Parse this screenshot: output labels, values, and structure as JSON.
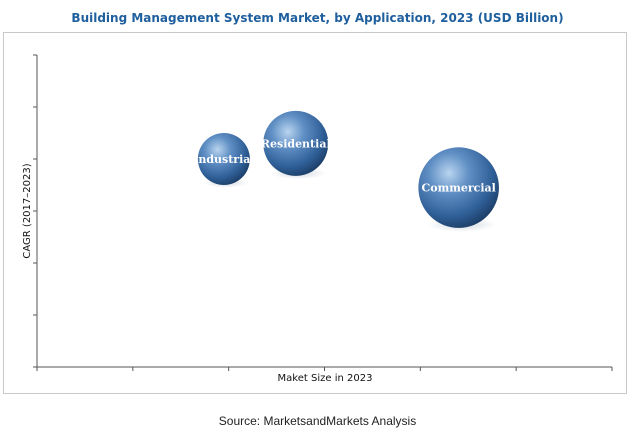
{
  "chart_data": {
    "type": "bubble",
    "title": "Building Management System Market, by Application, 2023 (USD Billion)",
    "xlabel": "Maket Size in 2023",
    "ylabel": "CAGR (2017–2023)",
    "xlim": [
      0,
      6
    ],
    "ylim": [
      0,
      6
    ],
    "grid": false,
    "legend": "none",
    "bubbles": [
      {
        "label": "Industrial",
        "x": 1.95,
        "y": 4.0,
        "size": 1.0
      },
      {
        "label": "Residential",
        "x": 2.7,
        "y": 4.3,
        "size": 1.25
      },
      {
        "label": "Commercial",
        "x": 4.4,
        "y": 3.45,
        "size": 1.55
      }
    ],
    "bubble_color": "#2f5f97"
  },
  "source": "Source: MarketsandMarkets Analysis"
}
